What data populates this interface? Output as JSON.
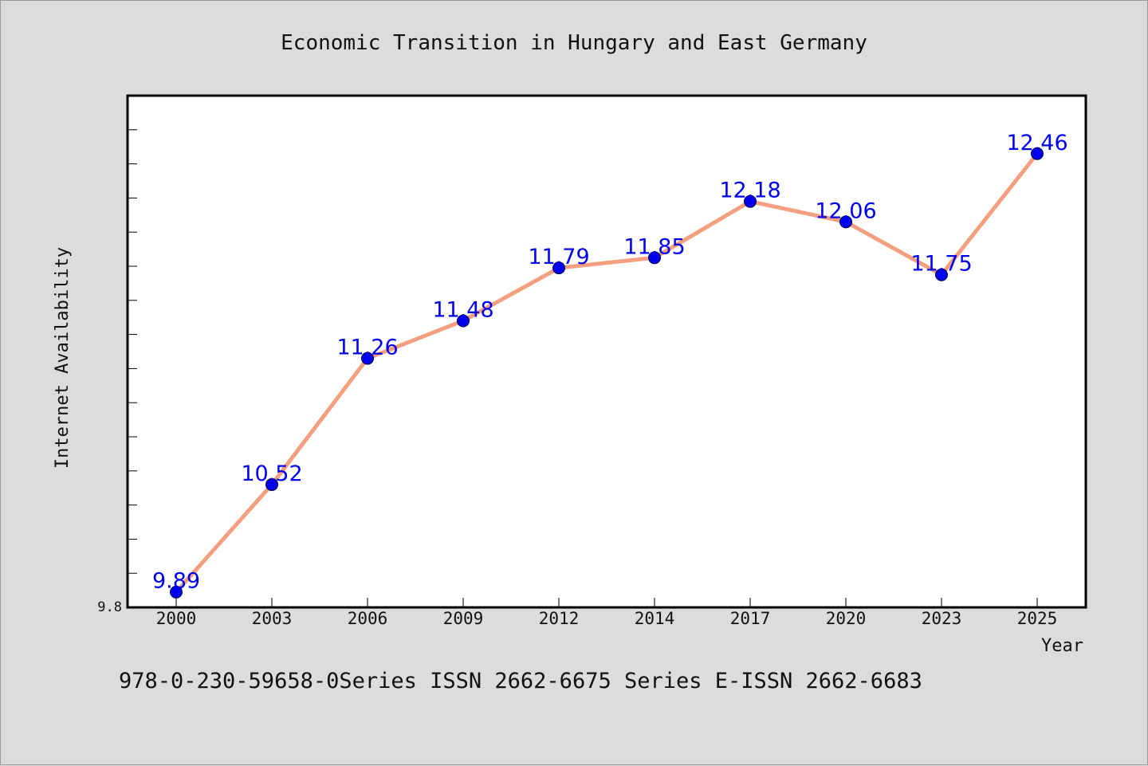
{
  "chart_data": {
    "type": "line",
    "title": "Economic Transition in Hungary and East Germany",
    "xlabel": "Year",
    "ylabel": "Internet Availability",
    "categories": [
      "2000",
      "2003",
      "2006",
      "2009",
      "2012",
      "2014",
      "2017",
      "2020",
      "2023",
      "2025"
    ],
    "values": [
      9.89,
      10.52,
      11.26,
      11.48,
      11.79,
      11.85,
      12.18,
      12.06,
      11.75,
      12.46
    ],
    "data_labels": [
      "9.89",
      "10.52",
      "11.26",
      "11.48",
      "11.79",
      "11.85",
      "12.18",
      "12.06",
      "11.75",
      "12.46"
    ],
    "ylim": [
      9.8,
      12.8
    ],
    "y_tick_label": "9.8",
    "grid": false,
    "legend": "none",
    "line_color": "#f4a080",
    "marker_color": "#0000ee",
    "label_color": "#0000ee"
  },
  "caption": "978-0-230-59658-0Series ISSN 2662-6675 Series E-ISSN 2662-6683"
}
